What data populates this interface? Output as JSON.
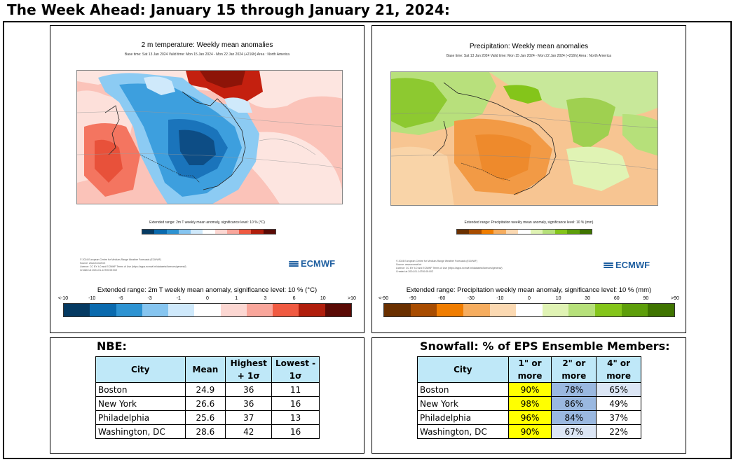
{
  "page_title": "The Week Ahead: January 15 through January 21, 2024:",
  "temp_map": {
    "title": "2 m temperature: Weekly mean anomalies",
    "subtitle": "Base time: Sat 13 Jan 2024 Valid time: Mon 15 Jan 2024 - Mon 22 Jan 2024 (+216h) Area : North America",
    "mini_caption": "Extended range: 2m T weekly mean anomaly, significance level: 10 % (°C)",
    "copyright_lines": [
      "© 2024 European Centre for Medium-Range Weather Forecasts (ECMWF)",
      "Source: www.ecmwf.int",
      "Licence: CC BY 4.0 and ECMWF Terms of Use (https://apps.ecmwf.int/datasets/licences/general/)",
      "Created at 2024-01-14T00:05:00Z"
    ],
    "logo_text": "ECMWF",
    "legend_caption": "Extended range: 2m T weekly mean anomaly, significance level: 10 % (°C)",
    "ticks": [
      "<-10",
      "-10",
      "-6",
      "-3",
      "-1",
      "0",
      "1",
      "3",
      "6",
      "10",
      ">10"
    ],
    "colors": [
      "#053a62",
      "#0a6aae",
      "#2d93d2",
      "#86c5f0",
      "#cfe9fb",
      "#ffffff",
      "#fcd7d2",
      "#f9a69b",
      "#f05a41",
      "#b01e0c",
      "#5a0a05"
    ]
  },
  "precip_map": {
    "title": "Precipitation: Weekly mean anomalies",
    "subtitle": "Base time: Sat 13 Jan 2024 Valid time: Mon 15 Jan 2024 - Mon 22 Jan 2024 (+216h) Area : North America",
    "mini_caption": "Extended range: Precipitation weekly mean anomaly, significance level: 10 % (mm)",
    "copyright_lines": [
      "© 2024 European Centre for Medium-Range Weather Forecasts (ECMWF)",
      "Source: www.ecmwf.int",
      "Licence: CC BY 4.0 and ECMWF Terms of Use (https://apps.ecmwf.int/datasets/licences/general/)",
      "Created at 2024-01-14T00:05:00Z"
    ],
    "logo_text": "ECMWF",
    "legend_caption": "Extended range: Precipitation weekly mean anomaly, significance level: 10 % (mm)",
    "ticks": [
      "<-90",
      "-90",
      "-60",
      "-30",
      "-10",
      "0",
      "10",
      "30",
      "60",
      "90",
      ">90"
    ],
    "colors": [
      "#6a3000",
      "#a84c00",
      "#f07d00",
      "#f6ad5f",
      "#fbd9b2",
      "#ffffff",
      "#e0f3b4",
      "#b6e07a",
      "#84c51a",
      "#5d9e0a",
      "#3f7400"
    ]
  },
  "nbe": {
    "title": "NBE:",
    "headers": [
      "City",
      "Mean",
      "Highest + 1σ",
      "Lowest - 1σ"
    ],
    "rows": [
      [
        "Boston",
        "24.9",
        "36",
        "11"
      ],
      [
        "New York",
        "26.6",
        "36",
        "16"
      ],
      [
        "Philadelphia",
        "25.6",
        "37",
        "13"
      ],
      [
        "Washington, DC",
        "28.6",
        "42",
        "16"
      ]
    ]
  },
  "snow": {
    "title": "Snowfall: % of EPS Ensemble Members:",
    "headers": [
      "City",
      "1\" or more",
      "2\" or more",
      "4\" or more"
    ],
    "rows": [
      [
        "Boston",
        "90%",
        "78%",
        "65%"
      ],
      [
        "New York",
        "98%",
        "86%",
        "49%"
      ],
      [
        "Philadelphia",
        "96%",
        "84%",
        "37%"
      ],
      [
        "Washington, DC",
        "90%",
        "67%",
        "22%"
      ]
    ]
  }
}
